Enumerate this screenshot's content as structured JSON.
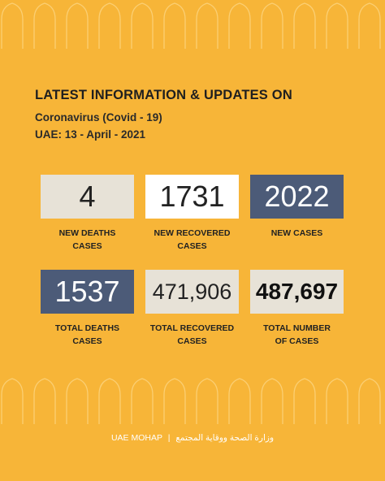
{
  "header": {
    "title": "LATEST INFORMATION & UPDATES ON",
    "subtitle": "Coronavirus (Covid - 19)",
    "date": "UAE: 13 - April - 2021"
  },
  "stats": {
    "new_deaths": {
      "value": "4",
      "label": "NEW DEATHS\nCASES"
    },
    "new_recovered": {
      "value": "1731",
      "label": "NEW RECOVERED\nCASES"
    },
    "new_cases": {
      "value": "2022",
      "label": "NEW CASES"
    },
    "total_deaths": {
      "value": "1537",
      "label": "TOTAL DEATHS\nCASES"
    },
    "total_recovered": {
      "value": "471,906",
      "label": "TOTAL RECOVERED\nCASES"
    },
    "total_cases": {
      "value": "487,697",
      "label": "TOTAL NUMBER\nOF CASES"
    }
  },
  "footer": {
    "english": "UAE MOHAP",
    "separator": "|",
    "arabic": "وزارة الصحة ووقاية المجتمع"
  },
  "colors": {
    "background": "#f7b538",
    "navy_box": "#4c5b78",
    "light_box": "#e7e2d7",
    "white_box": "#ffffff"
  }
}
